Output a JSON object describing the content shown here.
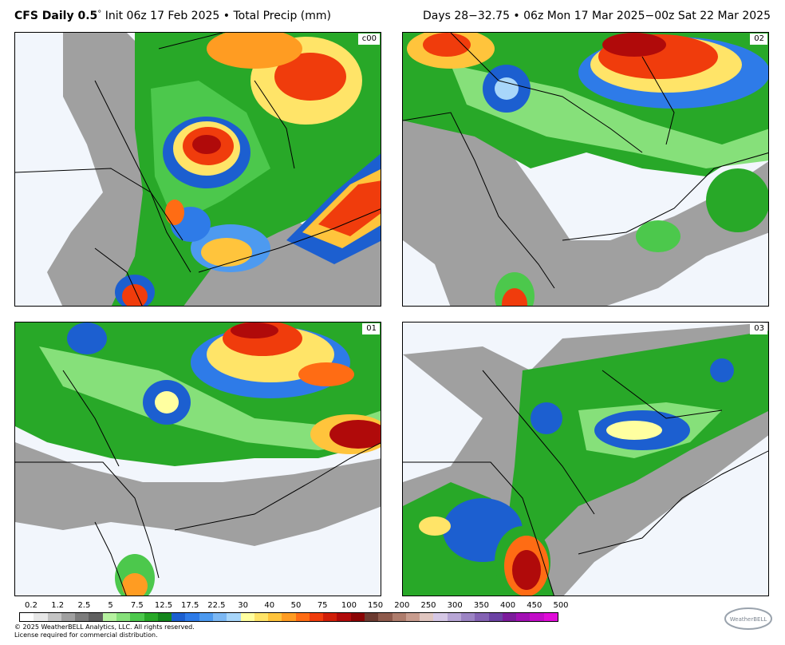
{
  "header": {
    "model": "CFS Daily 0.5",
    "degree": "°",
    "init_info": "Init 06z 17 Feb 2025 • Total Precip (mm)",
    "valid_info": "Days 28−32.75 • 06z Mon 17 Mar 2025−00z Sat 22 Mar 2025"
  },
  "panels": [
    {
      "member": "c00"
    },
    {
      "member": "02"
    },
    {
      "member": "01"
    },
    {
      "member": "03"
    }
  ],
  "legend": {
    "labels": [
      "0.2",
      "1.2",
      "2.5",
      "5",
      "7.5",
      "12.5",
      "17.5",
      "22.5",
      "30",
      "40",
      "50",
      "75",
      "100",
      "150",
      "200",
      "250",
      "300",
      "350",
      "400",
      "450",
      "500"
    ],
    "colors": [
      "#ffffff",
      "#e8e8e8",
      "#c4c4c4",
      "#a0a0a0",
      "#7c7c7c",
      "#606060",
      "#b6f2a0",
      "#86e07a",
      "#4cc84c",
      "#28a828",
      "#14861c",
      "#1c5fd0",
      "#2e7be8",
      "#4d9af0",
      "#7cb8f4",
      "#a8d6fa",
      "#ffffa0",
      "#ffe468",
      "#ffc43c",
      "#ff9c22",
      "#ff6c14",
      "#f03c0c",
      "#d01e08",
      "#b00a0a",
      "#8a0404",
      "#6c3a30",
      "#8e5a4c",
      "#ae7c6c",
      "#c89c8e",
      "#e0c6c0",
      "#d6c8e6",
      "#b8a6d6",
      "#9c84c4",
      "#8462b4",
      "#6c42a4",
      "#7c1c9c",
      "#a210b4",
      "#c20cc8",
      "#e00cd8"
    ]
  },
  "footer": {
    "copyright": "© 2025 WeatherBELL Analytics, LLC. All rights reserved.",
    "license": "License required for commercial distribution.",
    "logo_text": "WeatherBELL"
  },
  "icons": {
    "logo": "weatherbell-logo-icon"
  }
}
